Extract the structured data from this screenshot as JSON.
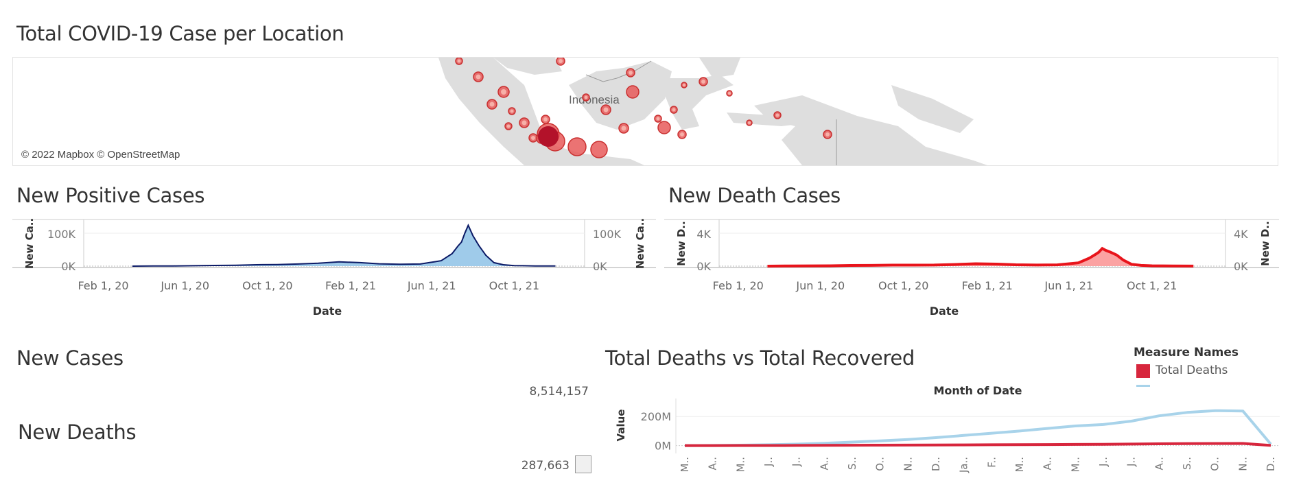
{
  "titles": {
    "map": "Total COVID-19 Case per Location",
    "positive": "New Positive Cases",
    "death": "New Death Cases",
    "new_cases": "New Cases",
    "new_deaths": "New Deaths",
    "deaths_vs_recovered": "Total Deaths vs Total Recovered"
  },
  "map": {
    "copyright": "© 2022 Mapbox © OpenStreetMap",
    "country_label": "Indonesia"
  },
  "kpis": {
    "new_cases": "8,514,157",
    "new_deaths": "287,663"
  },
  "legend": {
    "title": "Measure Names",
    "items": [
      {
        "label": "Total Deaths",
        "color": "#d7263d"
      },
      {
        "label": "",
        "color": "#a8d3ea"
      }
    ]
  },
  "chart_data": [
    {
      "type": "area",
      "title": "New Positive Cases",
      "xlabel": "Date",
      "ylabel_left": "New Ca..",
      "ylabel_right": "New Ca..",
      "x_ticks": [
        "Feb 1, 20",
        "Jun 1, 20",
        "Oct 1, 20",
        "Feb 1, 21",
        "Jun 1, 21",
        "Oct 1, 21"
      ],
      "y_ticks": [
        "0K",
        "100K"
      ],
      "ylim": [
        0,
        120000
      ],
      "fill_color": "#9fcbea",
      "line_color": "#0b1a66",
      "x": [
        "2020-03",
        "2020-04",
        "2020-05",
        "2020-06",
        "2020-07",
        "2020-08",
        "2020-09",
        "2020-10",
        "2020-11",
        "2020-12",
        "2021-01",
        "2021-02",
        "2021-03",
        "2021-04",
        "2021-05",
        "2021-06",
        "2021-07-01",
        "2021-07-10",
        "2021-07-15",
        "2021-07-20",
        "2021-07-25",
        "2021-08-01",
        "2021-08-10",
        "2021-08-20",
        "2021-09-01",
        "2021-09-15",
        "2021-10-01",
        "2021-11-01",
        "2021-12-01"
      ],
      "values": [
        0,
        300,
        500,
        1000,
        1800,
        2200,
        3500,
        4000,
        5500,
        7500,
        11000,
        9000,
        6000,
        5000,
        5500,
        14000,
        32000,
        52000,
        62000,
        85000,
        105000,
        78000,
        52000,
        28000,
        9000,
        3500,
        1500,
        500,
        300
      ]
    },
    {
      "type": "area",
      "title": "New Death Cases",
      "xlabel": "Date",
      "ylabel_left": "New D..",
      "ylabel_right": "New D..",
      "x_ticks": [
        "Feb 1, 20",
        "Jun 1, 20",
        "Oct 1, 20",
        "Feb 1, 21",
        "Jun 1, 21",
        "Oct 1, 21"
      ],
      "y_ticks": [
        "0K",
        "4K"
      ],
      "ylim": [
        0,
        5000
      ],
      "fill_color": "#fba2a2",
      "line_color": "#e8141b",
      "x": [
        "2020-03",
        "2020-04",
        "2020-05",
        "2020-06",
        "2020-07",
        "2020-08",
        "2020-09",
        "2020-10",
        "2020-11",
        "2020-12",
        "2021-01",
        "2021-02",
        "2021-03",
        "2021-04",
        "2021-05",
        "2021-06",
        "2021-07-01",
        "2021-07-10",
        "2021-07-15",
        "2021-07-20",
        "2021-07-25",
        "2021-08-01",
        "2021-08-10",
        "2021-08-20",
        "2021-09-01",
        "2021-09-15",
        "2021-10-01",
        "2021-11-01",
        "2021-12-01"
      ],
      "values": [
        0,
        20,
        30,
        40,
        70,
        80,
        110,
        110,
        120,
        180,
        260,
        220,
        150,
        120,
        140,
        350,
        850,
        1250,
        1500,
        1900,
        1700,
        1500,
        1200,
        650,
        200,
        80,
        40,
        20,
        10
      ]
    },
    {
      "type": "line",
      "title": "Total Deaths vs Total Recovered",
      "xlabel": "Month of Date",
      "ylabel": "Value",
      "y_ticks": [
        "0M",
        "200M"
      ],
      "ylim": [
        -30000000,
        300000000
      ],
      "categories": [
        "M..",
        "A..",
        "M..",
        "J..",
        "J..",
        "A..",
        "S..",
        "O..",
        "N..",
        "D..",
        "Ja..",
        "F..",
        "M..",
        "A..",
        "M..",
        "J..",
        "J..",
        "A..",
        "S..",
        "O..",
        "N..",
        "D.."
      ],
      "series": [
        {
          "name": "Total Deaths",
          "color": "#d7263d",
          "values": [
            0,
            200000,
            500000,
            800000,
            1200000,
            1700000,
            2300000,
            2900000,
            3500000,
            4200000,
            5000000,
            5800000,
            6500000,
            7200000,
            8000000,
            9000000,
            10500000,
            12500000,
            14000000,
            14500000,
            14800000,
            1000000
          ]
        },
        {
          "name": "",
          "color": "#a8d3ea",
          "values": [
            0,
            1000000,
            3000000,
            6000000,
            10000000,
            16000000,
            24000000,
            32000000,
            42000000,
            55000000,
            70000000,
            85000000,
            100000000,
            118000000,
            135000000,
            145000000,
            168000000,
            205000000,
            228000000,
            240000000,
            238000000,
            10000000
          ]
        }
      ]
    }
  ]
}
